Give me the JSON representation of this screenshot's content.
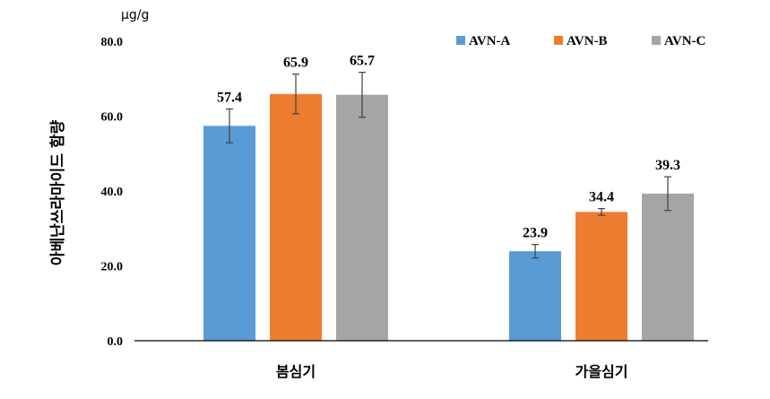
{
  "chart_data": {
    "type": "bar",
    "unit_label": "μg/g",
    "ylabel": "아베난쓰라마이드 함량",
    "xlabel": "",
    "categories": [
      "봄심기",
      "가을심기"
    ],
    "ylim": [
      0,
      80
    ],
    "yticks": [
      "0.0",
      "20.0",
      "40.0",
      "60.0",
      "80.0"
    ],
    "grid": false,
    "legend_position": "top-right",
    "series": [
      {
        "name": "AVN-A",
        "color": "#5b9bd5",
        "values": [
          57.4,
          23.9
        ],
        "labels": [
          "57.4",
          "23.9"
        ],
        "error": [
          4.5,
          1.8
        ]
      },
      {
        "name": "AVN-B",
        "color": "#ed7d31",
        "values": [
          65.9,
          34.4
        ],
        "labels": [
          "65.9",
          "34.4"
        ],
        "error": [
          5.3,
          0.9
        ]
      },
      {
        "name": "AVN-C",
        "color": "#a5a5a5",
        "values": [
          65.7,
          39.3
        ],
        "labels": [
          "65.7",
          "39.3"
        ],
        "error": [
          6.0,
          4.5
        ]
      }
    ]
  }
}
